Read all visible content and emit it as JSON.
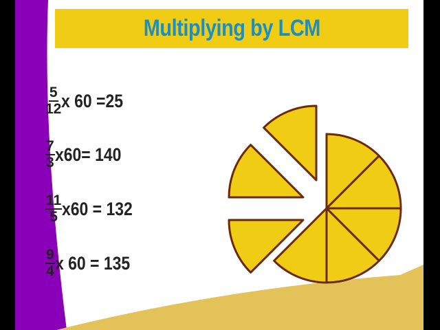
{
  "slide": {
    "title": "Multiplying by LCM",
    "equations": [
      {
        "numerator": "5",
        "denominator": "12",
        "rest": "x 60 =25"
      },
      {
        "numerator": "7",
        "denominator": "3",
        "rest": "x60= 140"
      },
      {
        "numerator": "11",
        "denominator": "5",
        "rest": "x60 = 132"
      },
      {
        "numerator": "9",
        "denominator": "4",
        "rest": "x 60 = 135"
      }
    ],
    "pie": {
      "total_slices": 8,
      "attached_slices": 5,
      "detached_slices": 3
    },
    "colors": {
      "banner": "#f0cc14",
      "title": "#1a8fc4",
      "purple": "#8a00b8",
      "pie_fill": "#f0cc14",
      "pie_stroke": "#6b2a0a",
      "accent_gold": "#e3c25a"
    }
  }
}
